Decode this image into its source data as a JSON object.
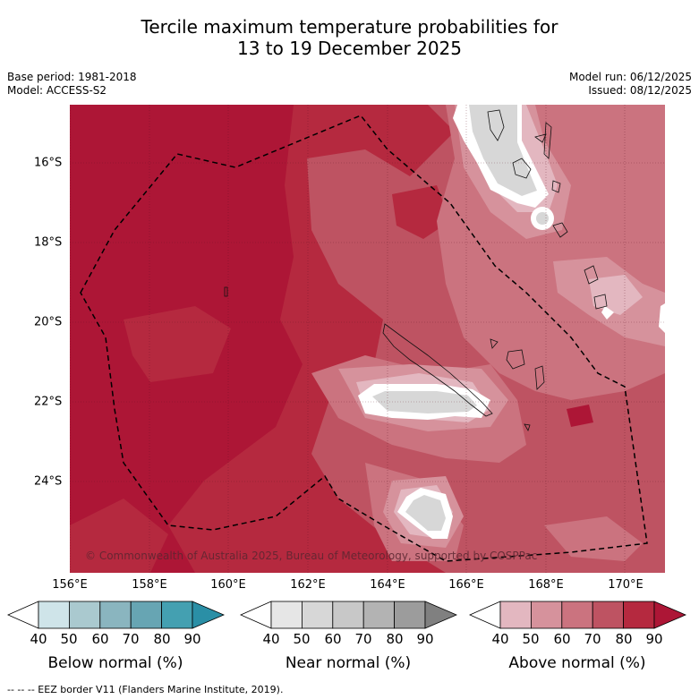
{
  "title_line1": "Tercile maximum temperature probabilities for",
  "title_line2": "13 to 19 December 2025",
  "meta_left": {
    "base_period": "Base period: 1981-2018",
    "model": "Model: ACCESS-S2"
  },
  "meta_right": {
    "model_run": "Model run: 06/12/2025",
    "issued": "Issued: 08/12/2025"
  },
  "map": {
    "lat_labels": [
      "16°S",
      "18°S",
      "20°S",
      "22°S",
      "24°S"
    ],
    "lon_labels": [
      "156°E",
      "158°E",
      "160°E",
      "162°E",
      "164°E",
      "166°E",
      "168°E",
      "170°E"
    ],
    "copyright": "© Commonwealth of Australia 2025, Bureau of Meteorology, supported by COSPPac",
    "dominant_category": "Above normal, mostly 70-90%"
  },
  "legends": [
    {
      "title": "Below normal (%)",
      "ticks": [
        "40",
        "50",
        "60",
        "70",
        "80",
        "90"
      ],
      "colors": [
        "#ffffff",
        "#cfe4e9",
        "#aac9cf",
        "#8ab5bf",
        "#67a5b3",
        "#44a0b1",
        "#2a8fa6"
      ]
    },
    {
      "title": "Near normal (%)",
      "ticks": [
        "40",
        "50",
        "60",
        "70",
        "80",
        "90"
      ],
      "colors": [
        "#ffffff",
        "#e6e6e6",
        "#d7d7d7",
        "#c8c8c8",
        "#b3b3b3",
        "#9c9c9c",
        "#808080"
      ]
    },
    {
      "title": "Above normal (%)",
      "ticks": [
        "40",
        "50",
        "60",
        "70",
        "80",
        "90"
      ],
      "colors": [
        "#ffffff",
        "#e3b7c0",
        "#d6929c",
        "#cb737f",
        "#be5362",
        "#b5293f",
        "#ad1636"
      ]
    }
  ],
  "footnote": "-- -- -- EEZ border V11 (Flanders Marine Institute, 2019)."
}
